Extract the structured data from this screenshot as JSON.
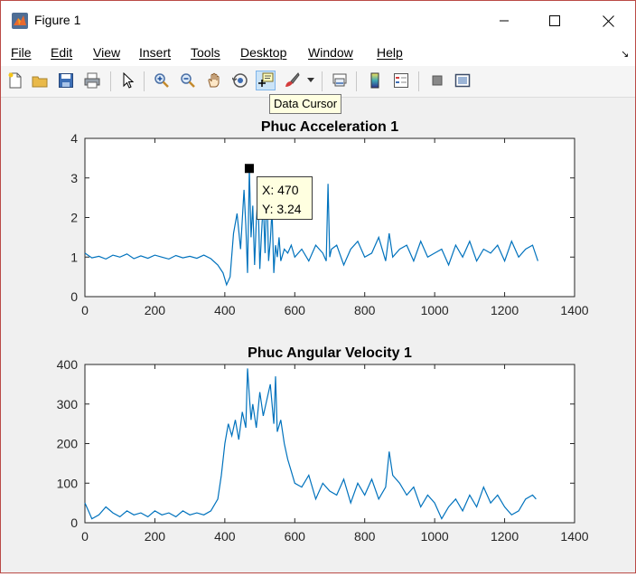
{
  "window": {
    "title": "Figure 1",
    "controls": [
      "minimize",
      "maximize",
      "close"
    ]
  },
  "menu": {
    "items": [
      "File",
      "Edit",
      "View",
      "Insert",
      "Tools",
      "Desktop",
      "Window",
      "Help"
    ]
  },
  "toolbar": {
    "buttons": [
      "new-figure-icon",
      "open-icon",
      "save-icon",
      "print-icon",
      "edit-plot-icon",
      "zoom-in-icon",
      "zoom-out-icon",
      "pan-icon",
      "rotate-3d-icon",
      "data-cursor-icon",
      "brush-icon",
      "link-plot-icon",
      "colorbar-icon",
      "legend-icon",
      "hide-plot-tools-icon",
      "show-plot-tools-icon"
    ],
    "active_button": "data-cursor-icon",
    "tooltip": "Data Cursor"
  },
  "datatip": {
    "x_label": "X: 470",
    "y_label": "Y: 3.24"
  },
  "colors": {
    "line": "#0072bd",
    "background": "#f0f0f0",
    "axes": "#ffffff",
    "window_border": "#ba4a46"
  },
  "chart_data": [
    {
      "type": "line",
      "title": "Phuc Acceleration 1",
      "xlim": [
        0,
        1400
      ],
      "ylim": [
        0,
        4
      ],
      "xticks": [
        0,
        200,
        400,
        600,
        800,
        1000,
        1200,
        1400
      ],
      "yticks": [
        0,
        1,
        2,
        3,
        4
      ],
      "grid": false,
      "series": [
        {
          "x": [
            0,
            20,
            40,
            60,
            80,
            100,
            120,
            140,
            160,
            180,
            200,
            220,
            240,
            260,
            280,
            300,
            320,
            340,
            360,
            380,
            395,
            405,
            415,
            425,
            435,
            445,
            455,
            460,
            465,
            470,
            475,
            480,
            485,
            490,
            495,
            500,
            505,
            510,
            515,
            520,
            525,
            530,
            535,
            540,
            545,
            550,
            555,
            560,
            570,
            580,
            590,
            600,
            620,
            640,
            660,
            680,
            690,
            695,
            700,
            705,
            720,
            740,
            760,
            780,
            800,
            820,
            840,
            860,
            870,
            880,
            900,
            920,
            940,
            960,
            980,
            1000,
            1020,
            1040,
            1060,
            1080,
            1100,
            1120,
            1140,
            1160,
            1180,
            1200,
            1220,
            1240,
            1260,
            1280,
            1295
          ],
          "y": [
            1.1,
            0.98,
            1.02,
            0.95,
            1.05,
            1.0,
            1.08,
            0.96,
            1.03,
            0.97,
            1.05,
            1.0,
            0.95,
            1.04,
            0.98,
            1.02,
            0.97,
            1.05,
            0.96,
            0.8,
            0.6,
            0.3,
            0.5,
            1.6,
            2.1,
            1.2,
            2.7,
            1.8,
            0.6,
            3.24,
            1.5,
            2.3,
            0.8,
            1.9,
            2.6,
            0.7,
            1.6,
            2.4,
            1.1,
            2.9,
            0.9,
            1.4,
            2.2,
            0.6,
            1.3,
            1.0,
            1.5,
            0.9,
            1.2,
            1.1,
            1.3,
            1.0,
            1.2,
            0.9,
            1.3,
            1.1,
            0.9,
            2.85,
            1.0,
            1.2,
            1.3,
            0.8,
            1.2,
            1.4,
            1.0,
            1.1,
            1.5,
            0.9,
            1.6,
            1.0,
            1.2,
            1.3,
            0.9,
            1.4,
            1.0,
            1.1,
            1.2,
            0.8,
            1.3,
            1.0,
            1.4,
            0.9,
            1.2,
            1.1,
            1.3,
            0.9,
            1.4,
            1.0,
            1.2,
            1.3,
            0.9
          ]
        }
      ]
    },
    {
      "type": "line",
      "title": "Phuc Angular Velocity 1",
      "xlim": [
        0,
        1400
      ],
      "ylim": [
        0,
        400
      ],
      "xticks": [
        0,
        200,
        400,
        600,
        800,
        1000,
        1200,
        1400
      ],
      "yticks": [
        0,
        100,
        200,
        300,
        400
      ],
      "grid": false,
      "series": [
        {
          "x": [
            0,
            10,
            20,
            40,
            60,
            80,
            100,
            120,
            140,
            160,
            180,
            200,
            220,
            240,
            260,
            280,
            300,
            320,
            340,
            360,
            380,
            390,
            400,
            410,
            420,
            430,
            440,
            450,
            460,
            465,
            470,
            475,
            480,
            490,
            500,
            510,
            520,
            530,
            540,
            545,
            550,
            560,
            570,
            580,
            590,
            600,
            620,
            640,
            660,
            680,
            700,
            720,
            740,
            760,
            780,
            800,
            820,
            840,
            860,
            870,
            880,
            900,
            920,
            940,
            960,
            980,
            1000,
            1020,
            1040,
            1060,
            1080,
            1100,
            1120,
            1140,
            1160,
            1180,
            1200,
            1220,
            1240,
            1260,
            1280,
            1290
          ],
          "y": [
            50,
            30,
            10,
            20,
            40,
            25,
            15,
            30,
            20,
            25,
            15,
            30,
            20,
            25,
            15,
            30,
            20,
            25,
            20,
            30,
            60,
            120,
            200,
            250,
            220,
            260,
            210,
            280,
            240,
            390,
            320,
            260,
            300,
            240,
            330,
            270,
            310,
            350,
            250,
            370,
            230,
            260,
            200,
            160,
            130,
            100,
            90,
            120,
            60,
            100,
            80,
            70,
            110,
            50,
            100,
            70,
            110,
            60,
            90,
            180,
            120,
            100,
            70,
            90,
            40,
            70,
            50,
            10,
            40,
            60,
            30,
            70,
            40,
            90,
            50,
            70,
            40,
            20,
            30,
            60,
            70,
            60
          ]
        }
      ]
    }
  ]
}
